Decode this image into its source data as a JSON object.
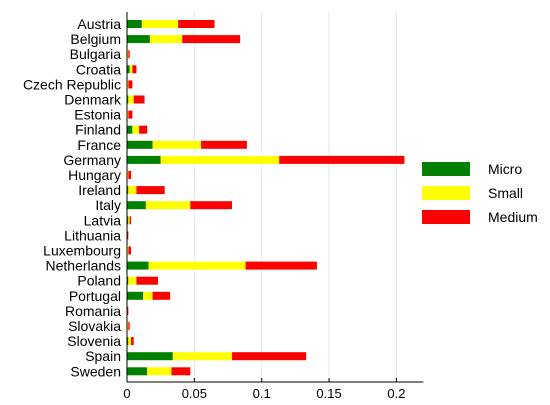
{
  "chart_data": {
    "type": "bar",
    "orientation": "horizontal",
    "stacked": true,
    "categories": [
      "Austria",
      "Belgium",
      "Bulgaria",
      "Croatia",
      "Czech Republic",
      "Denmark",
      "Estonia",
      "Finland",
      "France",
      "Germany",
      "Hungary",
      "Ireland",
      "Italy",
      "Latvia",
      "Lithuania",
      "Luxembourg",
      "Netherlands",
      "Poland",
      "Portugal",
      "Romania",
      "Slovakia",
      "Slovenia",
      "Spain",
      "Sweden"
    ],
    "series": [
      {
        "name": "Micro",
        "color": "#008000",
        "values": [
          0.011,
          0.017,
          0.0,
          0.002,
          0.0,
          0.001,
          0.0,
          0.004,
          0.019,
          0.025,
          0.0,
          0.001,
          0.014,
          0.001,
          0.0,
          0.0,
          0.016,
          0.001,
          0.012,
          0.0,
          0.0,
          0.001,
          0.034,
          0.015
        ]
      },
      {
        "name": "Small",
        "color": "#ffff00",
        "values": [
          0.027,
          0.024,
          0.001,
          0.002,
          0.001,
          0.004,
          0.001,
          0.005,
          0.036,
          0.088,
          0.001,
          0.006,
          0.033,
          0.001,
          0.0,
          0.001,
          0.072,
          0.006,
          0.007,
          0.0,
          0.001,
          0.002,
          0.044,
          0.018
        ]
      },
      {
        "name": "Medium",
        "color": "#ff0000",
        "values": [
          0.027,
          0.043,
          0.001,
          0.003,
          0.003,
          0.008,
          0.003,
          0.006,
          0.034,
          0.093,
          0.002,
          0.021,
          0.031,
          0.001,
          0.001,
          0.002,
          0.053,
          0.016,
          0.013,
          0.001,
          0.001,
          0.002,
          0.055,
          0.014
        ]
      }
    ],
    "xlim": [
      0,
      0.22
    ],
    "xticks": [
      0,
      0.05,
      0.1,
      0.15,
      0.2
    ],
    "xtick_labels": [
      "0",
      "0.05",
      "0.1",
      "0.15",
      "0.2"
    ],
    "grid": "vertical",
    "legend": "right"
  }
}
